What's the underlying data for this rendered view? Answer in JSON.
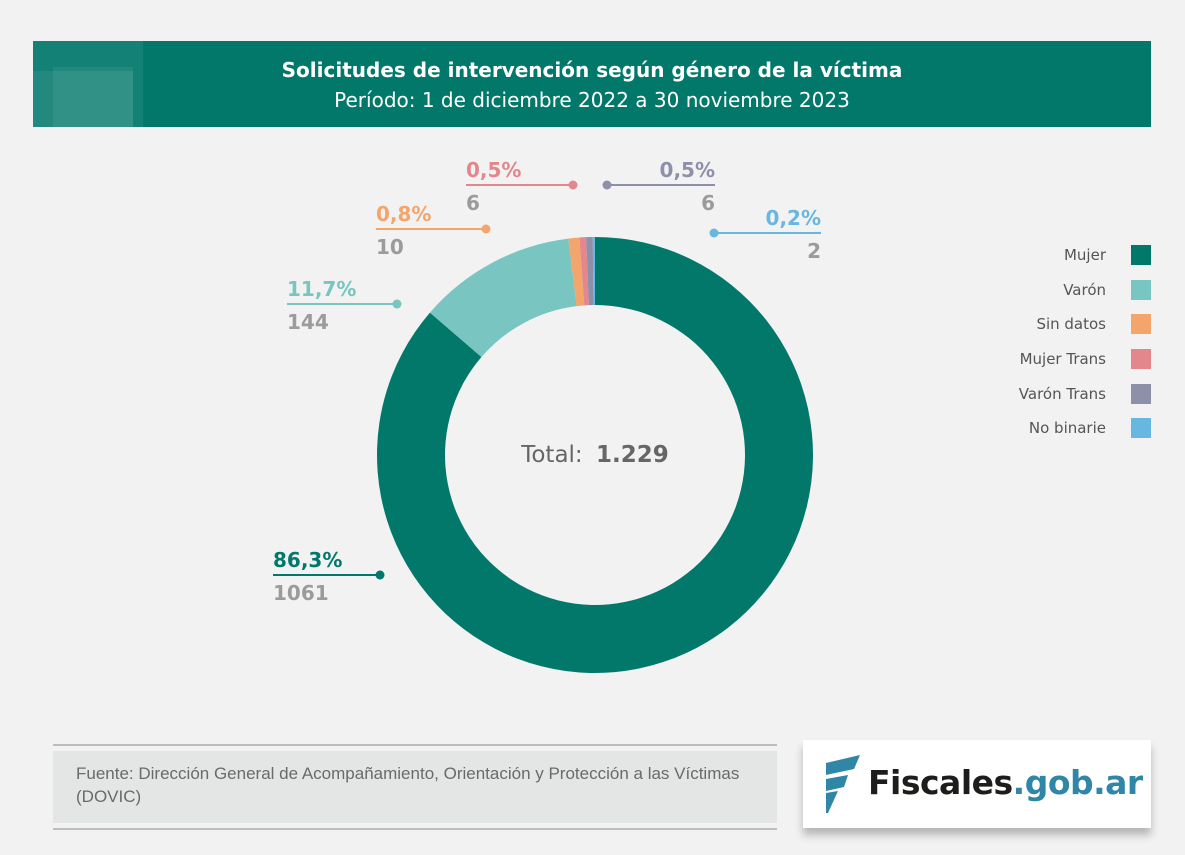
{
  "header": {
    "title": "Solicitudes de intervención según género de la víctima",
    "subtitle": "Período: 1 de diciembre 2022 a 30 noviembre 2023"
  },
  "chart_data": {
    "type": "pie",
    "variant": "donut",
    "title": "Solicitudes de intervención según género de la víctima",
    "subtitle": "Período: 1 de diciembre 2022 a 30 noviembre 2023",
    "center_label": {
      "prefix": "Total:",
      "value": "1.229"
    },
    "total": 1229,
    "legend_position": "right",
    "slices": [
      {
        "name": "Mujer",
        "value": 1061,
        "percent_label": "86,3%",
        "value_label": "1061",
        "color": "#02786b"
      },
      {
        "name": "Varón",
        "value": 144,
        "percent_label": "11,7%",
        "value_label": "144",
        "color": "#78c5c1"
      },
      {
        "name": "Sin datos",
        "value": 10,
        "percent_label": "0,8%",
        "value_label": "10",
        "color": "#f3a56c"
      },
      {
        "name": "Mujer Trans",
        "value": 6,
        "percent_label": "0,5%",
        "value_label": "6",
        "color": "#e3878c"
      },
      {
        "name": "Varón Trans",
        "value": 6,
        "percent_label": "0,5%",
        "value_label": "6",
        "color": "#8e8fa9"
      },
      {
        "name": "No binarie",
        "value": 2,
        "percent_label": "0,2%",
        "value_label": "2",
        "color": "#67b7e1"
      }
    ]
  },
  "legend": {
    "items": [
      {
        "label": "Mujer",
        "color": "#02786b"
      },
      {
        "label": "Varón",
        "color": "#78c5c1"
      },
      {
        "label": "Sin datos",
        "color": "#f3a56c"
      },
      {
        "label": "Mujer Trans",
        "color": "#e3878c"
      },
      {
        "label": "Varón Trans",
        "color": "#8e8fa9"
      },
      {
        "label": "No binarie",
        "color": "#67b7e1"
      }
    ]
  },
  "footer": {
    "source": "Fuente: Dirección General de Acompañamiento, Orientación y Protección a las Víctimas (DOVIC)",
    "logo": {
      "main": "Fiscales",
      "suffix": ".gob.ar",
      "icon": "fiscales-f-logo-icon"
    }
  }
}
